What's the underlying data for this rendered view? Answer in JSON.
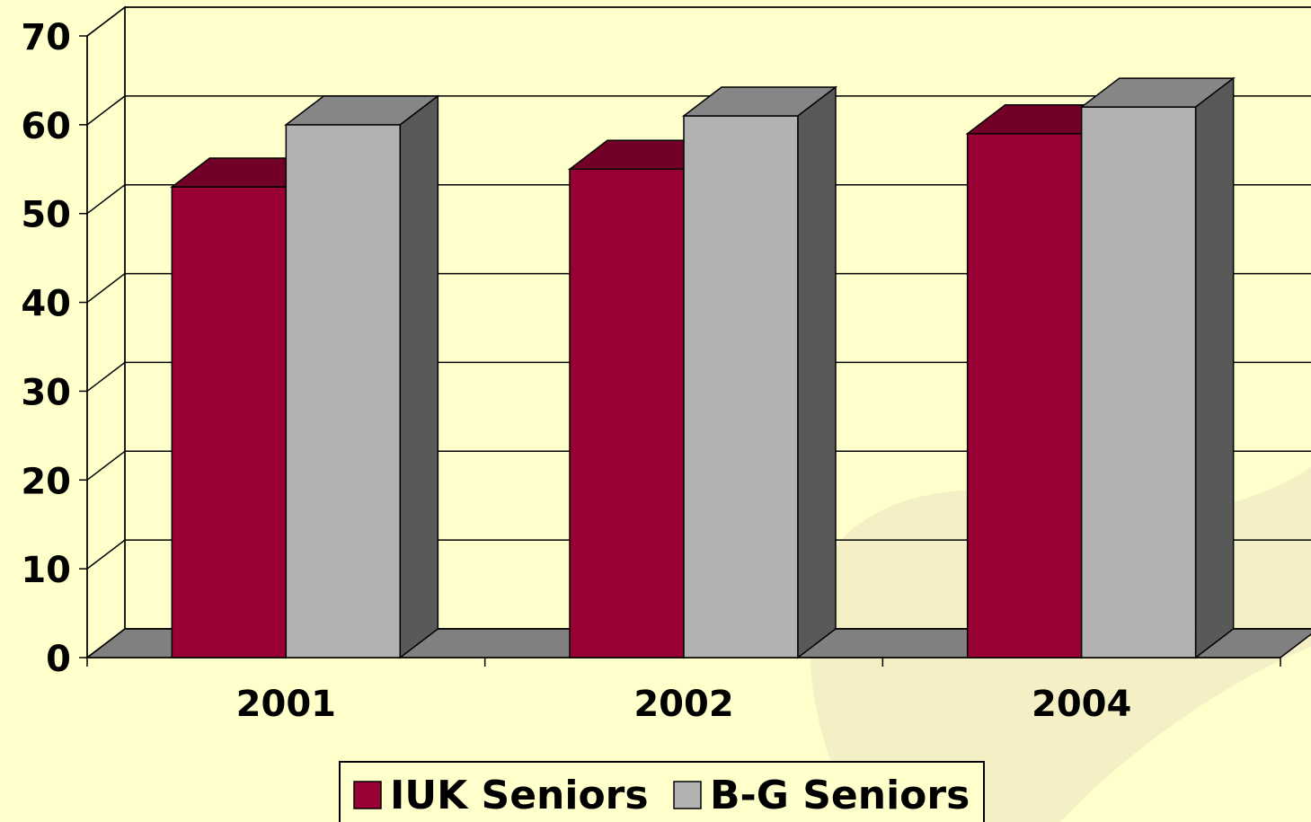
{
  "chart_data": {
    "type": "bar3d",
    "categories": [
      "2001",
      "2002",
      "2004"
    ],
    "series": [
      {
        "name": "IUK Seniors",
        "color": "#990033",
        "values": [
          53,
          55,
          59
        ]
      },
      {
        "name": "B-G Seniors",
        "color": "#b2b2b2",
        "values": [
          60,
          61,
          62
        ]
      }
    ],
    "ylim": [
      0,
      70
    ],
    "yticks": [
      0,
      10,
      20,
      30,
      40,
      50,
      60,
      70
    ],
    "grid": true,
    "legend": "bottom"
  }
}
